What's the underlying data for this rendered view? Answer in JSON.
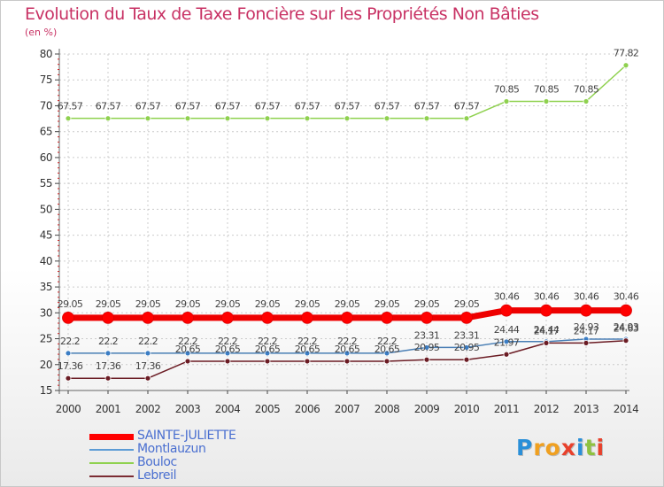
{
  "chart_data": {
    "type": "line",
    "title": "Evolution du Taux de Taxe Foncière sur les Propriétés Non Bâties",
    "ylabel": "(en %)",
    "xlabel": "",
    "ylim": [
      15,
      80
    ],
    "yticks": [
      15,
      20,
      25,
      30,
      35,
      40,
      45,
      50,
      55,
      60,
      65,
      70,
      75,
      80
    ],
    "categories": [
      "2000",
      "2001",
      "2002",
      "2003",
      "2004",
      "2005",
      "2006",
      "2007",
      "2008",
      "2009",
      "2010",
      "2011",
      "2012",
      "2013",
      "2014"
    ],
    "series": [
      {
        "name": "SAINTE-JULIETTE",
        "color": "#ff0000",
        "values": [
          29.05,
          29.05,
          29.05,
          29.05,
          29.05,
          29.05,
          29.05,
          29.05,
          29.05,
          29.05,
          29.05,
          30.46,
          30.46,
          30.46,
          30.46
        ],
        "labels": [
          "29.05",
          "29.05",
          "29.05",
          "29.05",
          "29.05",
          "29.05",
          "29.05",
          "29.05",
          "29.05",
          "29.05",
          "29.05",
          "30.46",
          "30.46",
          "30.46",
          "30.46"
        ]
      },
      {
        "name": "Montlauzun",
        "color": "#5b9bd5",
        "values": [
          22.2,
          22.2,
          22.2,
          22.2,
          22.2,
          22.2,
          22.2,
          22.2,
          22.2,
          23.31,
          23.31,
          24.44,
          24.44,
          24.93,
          24.93
        ],
        "labels": [
          "22.2",
          "22.2",
          "22.2",
          "22.2",
          "22.2",
          "22.2",
          "22.2",
          "22.2",
          "22.2",
          "23.31",
          "23.31",
          "24.44",
          "24.44",
          "24.93",
          "24.93"
        ]
      },
      {
        "name": "Bouloc",
        "color": "#8fd14f",
        "values": [
          67.57,
          67.57,
          67.57,
          67.57,
          67.57,
          67.57,
          67.57,
          67.57,
          67.57,
          67.57,
          67.57,
          70.85,
          70.85,
          70.85,
          77.82
        ],
        "labels": [
          "67.57",
          "67.57",
          "67.57",
          "67.57",
          "67.57",
          "67.57",
          "67.57",
          "67.57",
          "67.57",
          "67.57",
          "67.57",
          "70.85",
          "70.85",
          "70.85",
          "77.82"
        ]
      },
      {
        "name": "Lebreil",
        "color": "#7b2c33",
        "values": [
          17.36,
          17.36,
          17.36,
          20.65,
          20.65,
          20.65,
          20.65,
          20.65,
          20.65,
          20.95,
          20.95,
          21.97,
          24.17,
          24.17,
          24.63
        ],
        "labels": [
          "17.36",
          "17.36",
          "17.36",
          "20.65",
          "20.65",
          "20.65",
          "20.65",
          "20.65",
          "20.65",
          "20.95",
          "20.95",
          "21.97",
          "24.17",
          "24.17",
          "24.63"
        ]
      }
    ]
  },
  "logo": {
    "text": "Proxiti"
  }
}
